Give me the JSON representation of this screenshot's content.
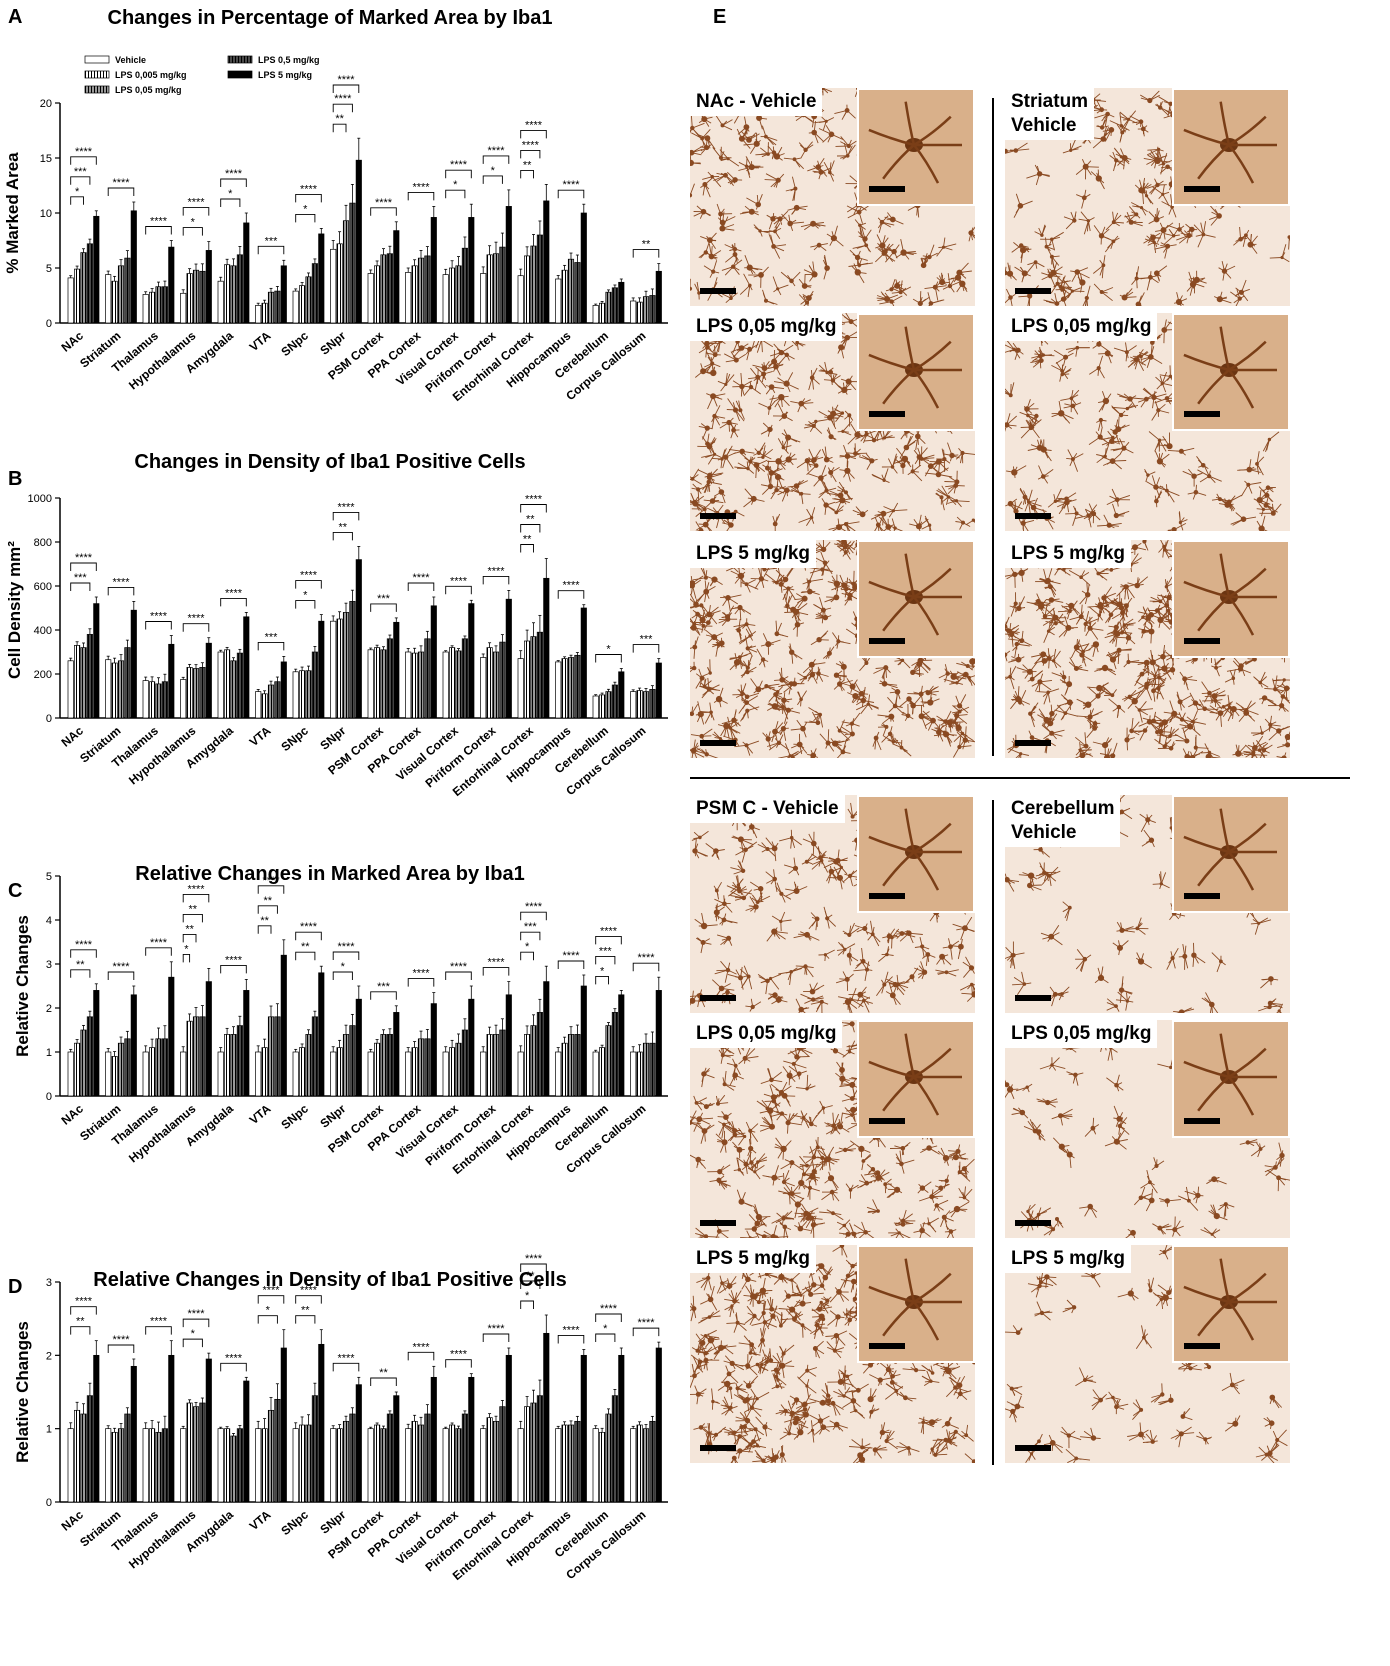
{
  "panel_letters": {
    "a": "A",
    "b": "B",
    "c": "C",
    "d": "D",
    "e": "E"
  },
  "legend": [
    {
      "label": "Vehicle",
      "pattern": "white"
    },
    {
      "label": "LPS 0,005 mg/kg",
      "pattern": "hatch"
    },
    {
      "label": "LPS 0,05 mg/kg",
      "pattern": "grey-hatch"
    },
    {
      "label": "LPS 0,5 mg/kg",
      "pattern": "dark"
    },
    {
      "label": "LPS 5 mg/kg",
      "pattern": "black"
    }
  ],
  "chart_data": [
    {
      "type": "bar",
      "title": "Changes in Percentage of Marked Area by Iba1",
      "ylabel": "% Marked Area",
      "xlabel": "",
      "ylim": [
        0,
        20
      ],
      "yticks": [
        0,
        5,
        10,
        15,
        20
      ],
      "categories": [
        "NAc",
        "Striatum",
        "Thalamus",
        "Hypothalamus",
        "Amygdala",
        "VTA",
        "SNpc",
        "SNpr",
        "PSM Cortex",
        "PPA Cortex",
        "Visual Cortex",
        "Piriform Cortex",
        "Entorhinal Cortex",
        "Hippocampus",
        "Cerebellum",
        "Corpus Callosum"
      ],
      "series": [
        {
          "name": "Vehicle",
          "values": [
            4.1,
            4.4,
            2.6,
            2.7,
            3.8,
            1.6,
            2.9,
            6.7,
            4.5,
            4.6,
            4.4,
            4.5,
            4.3,
            4.0,
            1.6,
            2.0
          ]
        },
        {
          "name": "LPS 0,005 mg/kg",
          "values": [
            4.9,
            3.8,
            2.8,
            4.5,
            5.3,
            1.8,
            3.4,
            7.2,
            5.2,
            5.2,
            5.0,
            6.2,
            6.1,
            4.8,
            1.8,
            1.9
          ]
        },
        {
          "name": "LPS 0,05 mg/kg",
          "values": [
            6.4,
            5.2,
            3.3,
            4.8,
            5.2,
            2.8,
            4.2,
            9.3,
            6.2,
            5.9,
            5.2,
            6.3,
            7.0,
            5.8,
            2.8,
            2.4
          ]
        },
        {
          "name": "LPS 0,5 mg/kg",
          "values": [
            7.2,
            5.9,
            3.3,
            4.7,
            6.2,
            2.9,
            5.4,
            10.9,
            6.3,
            6.1,
            6.8,
            6.9,
            8.0,
            5.5,
            3.2,
            2.5
          ]
        },
        {
          "name": "LPS 5 mg/kg",
          "values": [
            9.7,
            10.2,
            6.9,
            6.6,
            9.1,
            5.2,
            8.1,
            14.8,
            8.4,
            9.6,
            9.6,
            10.6,
            11.1,
            10.0,
            3.7,
            4.7
          ]
        }
      ],
      "errors": [
        0.5,
        0.8,
        0.6,
        0.8,
        0.9,
        0.5,
        0.5,
        2.0,
        0.8,
        1.0,
        1.2,
        1.5,
        1.5,
        0.8,
        0.3,
        0.7
      ],
      "significance": [
        [
          "****",
          "***",
          "*"
        ],
        [
          "****"
        ],
        [
          "****"
        ],
        [
          "****",
          "*"
        ],
        [
          "****",
          "*"
        ],
        [
          "***"
        ],
        [
          "****",
          "*"
        ],
        [
          "****",
          "****",
          "**"
        ],
        [
          "****"
        ],
        [
          "****"
        ],
        [
          "****",
          "*"
        ],
        [
          "****",
          "*"
        ],
        [
          "****",
          "****",
          "**"
        ],
        [
          "****"
        ],
        [],
        [
          "**"
        ]
      ]
    },
    {
      "type": "bar",
      "title": "Changes in Density of Iba1 Positive Cells",
      "ylabel": "Cell Density mm²",
      "xlabel": "",
      "ylim": [
        0,
        1000
      ],
      "yticks": [
        0,
        200,
        400,
        600,
        800,
        1000
      ],
      "categories": [
        "NAc",
        "Striatum",
        "Thalamus",
        "Hypothalamus",
        "Amygdala",
        "VTA",
        "SNpc",
        "SNpr",
        "PSM Cortex",
        "PPA Cortex",
        "Visual Cortex",
        "Piriform Cortex",
        "Entorhinal Cortex",
        "Hippocampus",
        "Cerebellum",
        "Corpus Callosum"
      ],
      "series": [
        {
          "name": "Vehicle",
          "values": [
            260,
            265,
            170,
            175,
            300,
            120,
            210,
            440,
            310,
            300,
            300,
            275,
            270,
            255,
            100,
            120
          ]
        },
        {
          "name": "LPS 0,005 mg/kg",
          "values": [
            330,
            250,
            165,
            230,
            310,
            110,
            215,
            450,
            320,
            295,
            320,
            320,
            350,
            270,
            105,
            125
          ]
        },
        {
          "name": "LPS 0,05 mg/kg",
          "values": [
            320,
            260,
            155,
            225,
            260,
            150,
            215,
            480,
            310,
            300,
            305,
            300,
            370,
            275,
            120,
            120
          ]
        },
        {
          "name": "LPS 0,5 mg/kg",
          "values": [
            380,
            320,
            165,
            230,
            295,
            165,
            300,
            530,
            360,
            360,
            360,
            345,
            390,
            285,
            150,
            130
          ]
        },
        {
          "name": "LPS 5 mg/kg",
          "values": [
            520,
            490,
            335,
            340,
            460,
            255,
            440,
            720,
            435,
            510,
            520,
            540,
            635,
            500,
            210,
            250
          ]
        }
      ],
      "errors": [
        30,
        40,
        40,
        25,
        20,
        25,
        30,
        60,
        20,
        40,
        15,
        40,
        90,
        15,
        15,
        20
      ],
      "significance": [
        [
          "****",
          "***"
        ],
        [
          "****"
        ],
        [
          "****"
        ],
        [
          "****"
        ],
        [
          "****"
        ],
        [
          "***"
        ],
        [
          "****",
          "*"
        ],
        [
          "****",
          "**"
        ],
        [
          "***"
        ],
        [
          "****"
        ],
        [
          "****"
        ],
        [
          "****"
        ],
        [
          "****",
          "**",
          "**"
        ],
        [
          "****"
        ],
        [
          "*"
        ],
        [
          "***"
        ]
      ]
    },
    {
      "type": "bar",
      "title": "Relative Changes in Marked Area by Iba1",
      "ylabel": "Relative Changes",
      "xlabel": "",
      "ylim": [
        0,
        5
      ],
      "yticks": [
        0,
        1,
        2,
        3,
        4,
        5
      ],
      "categories": [
        "NAc",
        "Striatum",
        "Thalamus",
        "Hypothalamus",
        "Amygdala",
        "VTA",
        "SNpc",
        "SNpr",
        "PSM Cortex",
        "PPA Cortex",
        "Visual Cortex",
        "Piriform Cortex",
        "Entorhinal Cortex",
        "Hippocampus",
        "Cerebellum",
        "Corpus Callosum"
      ],
      "series": [
        {
          "name": "Vehicle",
          "values": [
            1.0,
            1.0,
            1.0,
            1.0,
            1.0,
            1.0,
            1.0,
            1.0,
            1.0,
            1.0,
            1.0,
            1.0,
            1.0,
            1.0,
            1.0,
            1.0
          ]
        },
        {
          "name": "LPS 0,005 mg/kg",
          "values": [
            1.2,
            0.9,
            1.1,
            1.7,
            1.4,
            1.1,
            1.1,
            1.1,
            1.2,
            1.1,
            1.1,
            1.4,
            1.4,
            1.2,
            1.1,
            1.0
          ]
        },
        {
          "name": "LPS 0,05 mg/kg",
          "values": [
            1.5,
            1.2,
            1.3,
            1.8,
            1.4,
            1.8,
            1.4,
            1.4,
            1.4,
            1.3,
            1.2,
            1.4,
            1.6,
            1.4,
            1.6,
            1.2
          ]
        },
        {
          "name": "LPS 0,5 mg/kg",
          "values": [
            1.8,
            1.3,
            1.3,
            1.8,
            1.6,
            1.8,
            1.8,
            1.6,
            1.4,
            1.3,
            1.5,
            1.5,
            1.9,
            1.4,
            1.9,
            1.2
          ]
        },
        {
          "name": "LPS 5 mg/kg",
          "values": [
            2.4,
            2.3,
            2.7,
            2.6,
            2.4,
            3.2,
            2.8,
            2.2,
            1.9,
            2.1,
            2.2,
            2.3,
            2.6,
            2.5,
            2.3,
            2.4
          ]
        }
      ],
      "errors": [
        0.15,
        0.2,
        0.35,
        0.3,
        0.25,
        0.35,
        0.15,
        0.3,
        0.15,
        0.25,
        0.3,
        0.3,
        0.35,
        0.25,
        0.1,
        0.3
      ],
      "significance": [
        [
          "****",
          "**"
        ],
        [
          "****"
        ],
        [
          "****"
        ],
        [
          "****",
          "**",
          "**",
          "*"
        ],
        [
          "****"
        ],
        [
          "****",
          "**",
          "**"
        ],
        [
          "****",
          "**"
        ],
        [
          "****",
          "*"
        ],
        [
          "***"
        ],
        [
          "****"
        ],
        [
          "****"
        ],
        [
          "****"
        ],
        [
          "****",
          "***",
          "*"
        ],
        [
          "****"
        ],
        [
          "****",
          "***",
          "*"
        ],
        [
          "****"
        ]
      ]
    },
    {
      "type": "bar",
      "title": "Relative Changes in Density of Iba1 Positive Cells",
      "ylabel": "Relative Changes",
      "xlabel": "",
      "ylim": [
        0,
        3
      ],
      "yticks": [
        0,
        1,
        2,
        3
      ],
      "categories": [
        "NAc",
        "Striatum",
        "Thalamus",
        "Hypothalamus",
        "Amygdala",
        "VTA",
        "SNpc",
        "SNpr",
        "PSM Cortex",
        "PPA Cortex",
        "Visual Cortex",
        "Piriform Cortex",
        "Entorhinal Cortex",
        "Hippocampus",
        "Cerebellum",
        "Corpus Callosum"
      ],
      "series": [
        {
          "name": "Vehicle",
          "values": [
            1.0,
            1.0,
            1.0,
            1.0,
            1.0,
            1.0,
            1.0,
            1.0,
            1.0,
            1.0,
            1.0,
            1.0,
            1.0,
            1.0,
            1.0,
            1.0
          ]
        },
        {
          "name": "LPS 0,005 mg/kg",
          "values": [
            1.25,
            0.95,
            1.0,
            1.35,
            1.0,
            1.0,
            1.05,
            1.0,
            1.05,
            1.1,
            1.05,
            1.15,
            1.3,
            1.05,
            0.95,
            1.05
          ]
        },
        {
          "name": "LPS 0,05 mg/kg",
          "values": [
            1.2,
            1.0,
            0.95,
            1.3,
            0.9,
            1.25,
            1.05,
            1.1,
            1.0,
            1.05,
            1.0,
            1.1,
            1.35,
            1.05,
            1.2,
            1.0
          ]
        },
        {
          "name": "LPS 0,5 mg/kg",
          "values": [
            1.45,
            1.2,
            1.0,
            1.35,
            1.0,
            1.4,
            1.45,
            1.2,
            1.2,
            1.2,
            1.2,
            1.3,
            1.45,
            1.1,
            1.45,
            1.1
          ]
        },
        {
          "name": "LPS 5 mg/kg",
          "values": [
            2.0,
            1.85,
            2.0,
            1.95,
            1.65,
            2.1,
            2.15,
            1.6,
            1.45,
            1.7,
            1.7,
            2.0,
            2.3,
            2.0,
            2.0,
            2.1
          ]
        }
      ],
      "errors": [
        0.2,
        0.1,
        0.2,
        0.08,
        0.05,
        0.25,
        0.2,
        0.1,
        0.05,
        0.15,
        0.05,
        0.1,
        0.25,
        0.08,
        0.1,
        0.08
      ],
      "significance": [
        [
          "****",
          "**"
        ],
        [
          "****"
        ],
        [
          "****"
        ],
        [
          "****",
          "*"
        ],
        [
          "****"
        ],
        [
          "****",
          "*"
        ],
        [
          "****",
          "**"
        ],
        [
          "****"
        ],
        [
          "**"
        ],
        [
          "****"
        ],
        [
          "****"
        ],
        [
          "****"
        ],
        [
          "****",
          "**",
          "*"
        ],
        [
          "****"
        ],
        [
          "****",
          "*"
        ],
        [
          "****"
        ]
      ]
    }
  ],
  "micrographs": {
    "top": [
      {
        "label": "NAc - Vehicle",
        "density": "low"
      },
      {
        "label": "Striatum\nVehicle",
        "density": "low"
      },
      {
        "label": "LPS 0,05 mg/kg",
        "density": "mid"
      },
      {
        "label": "LPS 0,05 mg/kg",
        "density": "low"
      },
      {
        "label": "LPS 5 mg/kg",
        "density": "high"
      },
      {
        "label": "LPS 5 mg/kg",
        "density": "high"
      }
    ],
    "bottom": [
      {
        "label": "PSM C - Vehicle",
        "density": "low"
      },
      {
        "label": "Cerebellum\nVehicle",
        "density": "sparse"
      },
      {
        "label": "LPS 0,05 mg/kg",
        "density": "mid"
      },
      {
        "label": "LPS 0,05 mg/kg",
        "density": "sparse"
      },
      {
        "label": "LPS 5 mg/kg",
        "density": "high"
      },
      {
        "label": "LPS 5 mg/kg",
        "density": "sparse"
      }
    ]
  },
  "colors": {
    "tissue": "#f4e6da",
    "cell": "#8a4a22",
    "inset_bg": "#d9b08a"
  }
}
